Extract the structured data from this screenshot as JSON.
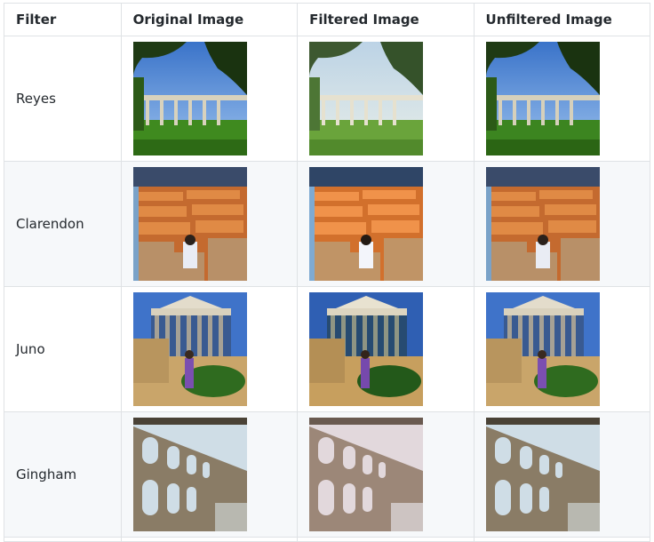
{
  "headers": [
    "Filter",
    "Original Image",
    "Filtered Image",
    "Unfiltered Image"
  ],
  "rows": [
    {
      "filter": "Reyes"
    },
    {
      "filter": "Clarendon"
    },
    {
      "filter": "Juno"
    },
    {
      "filter": "Gingham"
    }
  ]
}
